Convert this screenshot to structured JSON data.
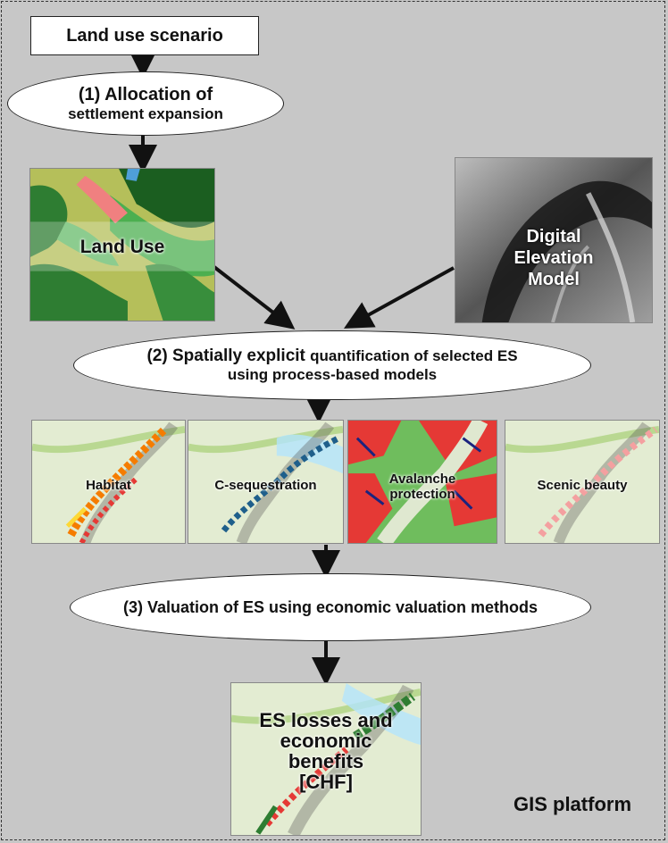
{
  "scenario": {
    "label": "Land use scenario"
  },
  "step1": {
    "line1": "(1) Allocation of",
    "line2": "settlement expansion"
  },
  "landuse": {
    "label": "Land Use"
  },
  "dem": {
    "line1": "Digital",
    "line2": "Elevation",
    "line3": "Model"
  },
  "step2": {
    "line1_bold": "(2) Spatially explicit",
    "line1_rest": "quantification of selected ES",
    "line2": "using process-based models"
  },
  "es_maps": [
    {
      "label": "Habitat"
    },
    {
      "label": "C-sequestration"
    },
    {
      "label_line1": "Avalanche",
      "label_line2": "protection"
    },
    {
      "label": "Scenic beauty"
    }
  ],
  "step3": {
    "label": "(3) Valuation of ES using economic valuation methods"
  },
  "result": {
    "line1": "ES losses and",
    "line2": "economic",
    "line3": "benefits",
    "line4": "[CHF]"
  },
  "platform": {
    "label": "GIS platform"
  },
  "colors": {
    "background": "#c7c7c7",
    "forest_dark": "#2e7d32",
    "forest_light": "#8bc34a",
    "settlement": "#f08080",
    "habitat": "#f57c00",
    "carbon": "#1f5f8b",
    "avalanche": "#e53935",
    "scenic": "#f4a0a0"
  }
}
